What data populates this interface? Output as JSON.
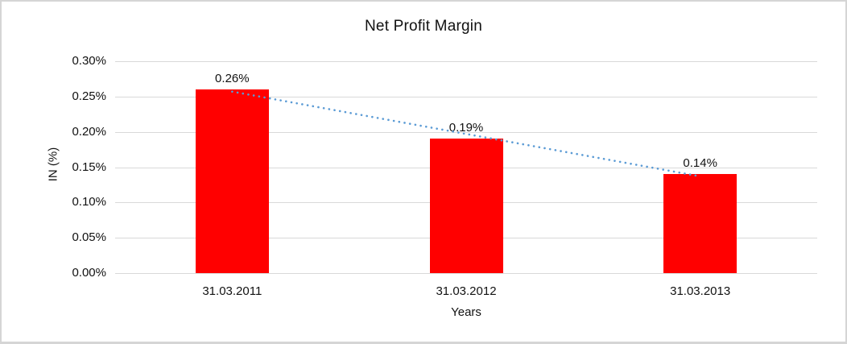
{
  "chart_data": {
    "type": "bar",
    "title": "Net Profit Margin",
    "categories": [
      "31.03.2011",
      "31.03.2012",
      "31.03.2013"
    ],
    "values": [
      0.26,
      0.19,
      0.14
    ],
    "data_labels": [
      "0.26%",
      "0.19%",
      "0.14%"
    ],
    "xlabel": "Years",
    "ylabel": "IN (%)",
    "ylim": [
      0,
      0.3
    ],
    "ytick_step": 0.05,
    "ytick_labels": [
      "0.00%",
      "0.05%",
      "0.10%",
      "0.15%",
      "0.20%",
      "0.25%",
      "0.30%"
    ],
    "grid": true,
    "legend_position": "none",
    "bar_color": "#ff0000",
    "gridline_color": "#d9d9d9",
    "text_color": "#111111",
    "trendline": {
      "style": "dotted",
      "color": "#5b9bd5",
      "start_value": 0.257,
      "end_value": 0.137
    }
  }
}
